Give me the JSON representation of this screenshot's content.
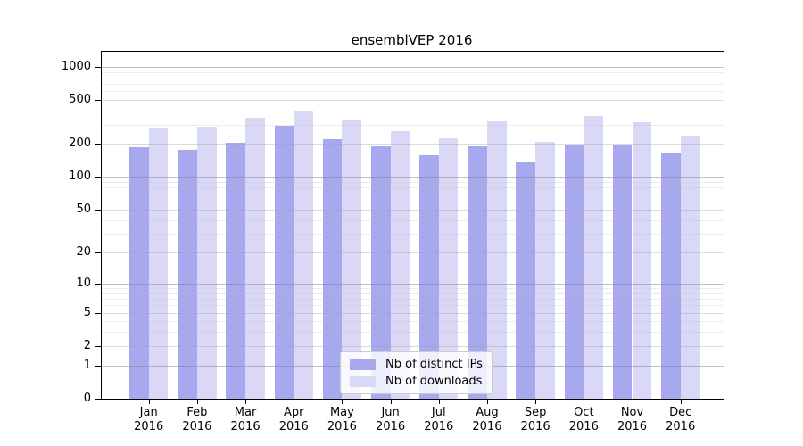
{
  "chart_data": {
    "type": "bar",
    "title": "ensemblVEP 2016",
    "year": "2016",
    "categories": [
      "Jan",
      "Feb",
      "Mar",
      "Apr",
      "May",
      "Jun",
      "Jul",
      "Aug",
      "Sep",
      "Oct",
      "Nov",
      "Dec"
    ],
    "series": [
      {
        "name": "Nb of distinct IPs",
        "color": "#a8a8ee",
        "values": [
          187,
          177,
          206,
          293,
          221,
          192,
          159,
          190,
          137,
          199,
          199,
          167
        ]
      },
      {
        "name": "Nb of downloads",
        "color": "#d9d9f7",
        "values": [
          277,
          287,
          344,
          392,
          335,
          262,
          226,
          323,
          210,
          359,
          314,
          240
        ]
      }
    ],
    "y_ticks": [
      1000,
      500,
      200,
      100,
      50,
      20,
      10,
      5,
      2,
      1,
      0
    ],
    "y_scale": "log1p",
    "ylim": [
      0,
      1370
    ],
    "xlabel": "",
    "ylabel": "",
    "grid": true,
    "legend_position": "lower-center"
  }
}
